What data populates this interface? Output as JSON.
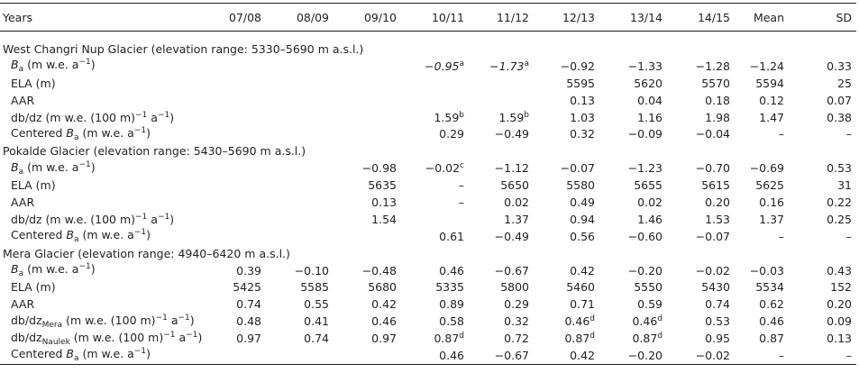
{
  "table": {
    "columns": [
      "Years",
      "07/08",
      "08/09",
      "09/10",
      "10/11",
      "11/12",
      "12/13",
      "13/14",
      "14/15",
      "Mean",
      "SD"
    ],
    "sections": [
      {
        "title": "West Changri Nup Glacier (elevation range: 5330–5690 m a.s.l.)",
        "rows": [
          {
            "label": [
              {
                "t": "B",
                "s": "i"
              },
              {
                "t": "a",
                "s": "sub"
              },
              {
                "t": " (m w.e. a"
              },
              {
                "t": "−1",
                "s": "sup"
              },
              {
                "t": ")"
              }
            ],
            "cells": [
              null,
              null,
              null,
              [
                {
                  "t": "−0.95",
                  "s": "i"
                },
                {
                  "t": "a",
                  "s": "sup"
                }
              ],
              [
                {
                  "t": "−1.73",
                  "s": "i"
                },
                {
                  "t": "a",
                  "s": "sup"
                }
              ],
              "−0.92",
              "−1.33",
              "−1.28",
              "−1.24",
              "0.33"
            ]
          },
          {
            "label": [
              {
                "t": "ELA (m)"
              }
            ],
            "cells": [
              null,
              null,
              null,
              null,
              null,
              "5595",
              "5620",
              "5570",
              "5594",
              "25"
            ]
          },
          {
            "label": [
              {
                "t": "AAR"
              }
            ],
            "cells": [
              null,
              null,
              null,
              null,
              null,
              "0.13",
              "0.04",
              "0.18",
              "0.12",
              "0.07"
            ]
          },
          {
            "label": [
              {
                "t": "db/dz (m w.e. (100 m)"
              },
              {
                "t": "−1",
                "s": "sup"
              },
              {
                "t": " a"
              },
              {
                "t": "−1",
                "s": "sup"
              },
              {
                "t": ")"
              }
            ],
            "cells": [
              null,
              null,
              null,
              [
                {
                  "t": "1.59"
                },
                {
                  "t": "b",
                  "s": "sup"
                }
              ],
              [
                {
                  "t": "1.59"
                },
                {
                  "t": "b",
                  "s": "sup"
                }
              ],
              "1.03",
              "1.16",
              "1.98",
              "1.47",
              "0.38"
            ]
          },
          {
            "label": [
              {
                "t": "Centered "
              },
              {
                "t": "B",
                "s": "i"
              },
              {
                "t": "a",
                "s": "sub"
              },
              {
                "t": " (m w.e. a"
              },
              {
                "t": "−1",
                "s": "sup"
              },
              {
                "t": ")"
              }
            ],
            "cells": [
              null,
              null,
              null,
              "0.29",
              "−0.49",
              "0.32",
              "−0.09",
              "−0.04",
              "–",
              "–"
            ]
          }
        ]
      },
      {
        "title": "Pokalde Glacier (elevation range: 5430–5690 m a.s.l.)",
        "rows": [
          {
            "label": [
              {
                "t": "B",
                "s": "i"
              },
              {
                "t": "a",
                "s": "sub"
              },
              {
                "t": " (m w.e. a"
              },
              {
                "t": "−1",
                "s": "sup"
              },
              {
                "t": ")"
              }
            ],
            "cells": [
              null,
              null,
              "−0.98",
              [
                {
                  "t": "−0.02"
                },
                {
                  "t": "c",
                  "s": "sup"
                }
              ],
              "−1.12",
              "−0.07",
              "−1.23",
              "−0.70",
              "−0.69",
              "0.53"
            ]
          },
          {
            "label": [
              {
                "t": "ELA (m)"
              }
            ],
            "cells": [
              null,
              null,
              "5635",
              "–",
              "5650",
              "5580",
              "5655",
              "5615",
              "5625",
              "31"
            ]
          },
          {
            "label": [
              {
                "t": "AAR"
              }
            ],
            "cells": [
              null,
              null,
              "0.13",
              "–",
              "0.02",
              "0.49",
              "0.02",
              "0.20",
              "0.16",
              "0.22"
            ]
          },
          {
            "label": [
              {
                "t": "db/dz (m w.e. (100 m)"
              },
              {
                "t": "−1",
                "s": "sup"
              },
              {
                "t": " a"
              },
              {
                "t": "−1",
                "s": "sup"
              },
              {
                "t": ")"
              }
            ],
            "cells": [
              null,
              null,
              "1.54",
              null,
              "1.37",
              "0.94",
              "1.46",
              "1.53",
              "1.37",
              "0.25"
            ]
          },
          {
            "label": [
              {
                "t": "Centered "
              },
              {
                "t": "B",
                "s": "i"
              },
              {
                "t": "a",
                "s": "sub"
              },
              {
                "t": " (m w.e. a"
              },
              {
                "t": "−1",
                "s": "sup"
              },
              {
                "t": ")"
              }
            ],
            "cells": [
              null,
              null,
              null,
              "0.61",
              "−0.49",
              "0.56",
              "−0.60",
              "−0.07",
              "–",
              "–"
            ]
          }
        ]
      },
      {
        "title": "Mera Glacier (elevation range: 4940–6420 m a.s.l.)",
        "rows": [
          {
            "label": [
              {
                "t": "B",
                "s": "i"
              },
              {
                "t": "a",
                "s": "sub"
              },
              {
                "t": " (m w.e. a"
              },
              {
                "t": "−1",
                "s": "sup"
              },
              {
                "t": ")"
              }
            ],
            "cells": [
              "0.39",
              "−0.10",
              "−0.48",
              "0.46",
              "−0.67",
              "0.42",
              "−0.20",
              "−0.02",
              "−0.03",
              "0.43"
            ]
          },
          {
            "label": [
              {
                "t": "ELA (m)"
              }
            ],
            "cells": [
              "5425",
              "5585",
              "5680",
              "5335",
              "5800",
              "5460",
              "5550",
              "5430",
              "5534",
              "152"
            ]
          },
          {
            "label": [
              {
                "t": "AAR"
              }
            ],
            "cells": [
              "0.74",
              "0.55",
              "0.42",
              "0.89",
              "0.29",
              "0.71",
              "0.59",
              "0.74",
              "0.62",
              "0.20"
            ]
          },
          {
            "label": [
              {
                "t": "db/dz"
              },
              {
                "t": "Mera",
                "s": "sub"
              },
              {
                "t": " (m w.e. (100 m)"
              },
              {
                "t": "−1",
                "s": "sup"
              },
              {
                "t": " a"
              },
              {
                "t": "−1",
                "s": "sup"
              },
              {
                "t": ")"
              }
            ],
            "cells": [
              "0.48",
              "0.41",
              "0.46",
              "0.58",
              "0.32",
              [
                {
                  "t": "0.46"
                },
                {
                  "t": "d",
                  "s": "sup"
                }
              ],
              [
                {
                  "t": "0.46"
                },
                {
                  "t": "d",
                  "s": "sup"
                }
              ],
              "0.53",
              "0.46",
              "0.09"
            ]
          },
          {
            "label": [
              {
                "t": "db/dz"
              },
              {
                "t": "Naulek",
                "s": "sub"
              },
              {
                "t": " (m w.e. (100 m)"
              },
              {
                "t": "−1",
                "s": "sup"
              },
              {
                "t": " a"
              },
              {
                "t": "−1",
                "s": "sup"
              },
              {
                "t": ")"
              }
            ],
            "cells": [
              "0.97",
              "0.74",
              "0.97",
              [
                {
                  "t": "0.87"
                },
                {
                  "t": "d",
                  "s": "sup"
                }
              ],
              "0.72",
              [
                {
                  "t": "0.87"
                },
                {
                  "t": "d",
                  "s": "sup"
                }
              ],
              [
                {
                  "t": "0.87"
                },
                {
                  "t": "d",
                  "s": "sup"
                }
              ],
              "0.95",
              "0.87",
              "0.13"
            ]
          },
          {
            "label": [
              {
                "t": "Centered "
              },
              {
                "t": "B",
                "s": "i"
              },
              {
                "t": "a",
                "s": "sub"
              },
              {
                "t": " (m w.e. a"
              },
              {
                "t": "−1",
                "s": "sup"
              },
              {
                "t": ")"
              }
            ],
            "cells": [
              null,
              null,
              null,
              "0.46",
              "−0.67",
              "0.42",
              "−0.20",
              "−0.02",
              "–",
              "–"
            ]
          }
        ]
      }
    ]
  }
}
